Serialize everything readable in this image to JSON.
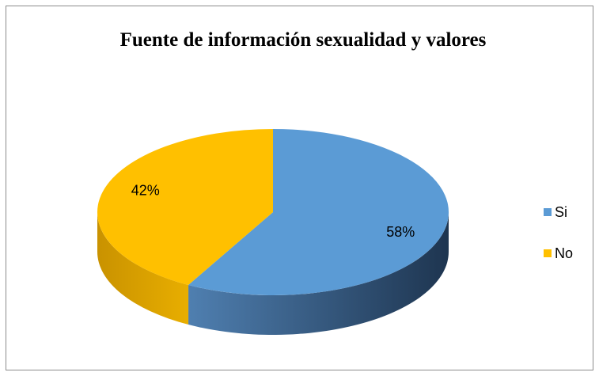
{
  "chart_data": {
    "type": "pie",
    "title": "Fuente de información sexualidad y valores",
    "categories": [
      "Si",
      "No"
    ],
    "values": [
      58,
      42
    ],
    "value_labels": [
      "58%",
      "42%"
    ],
    "colors": [
      "#5b9bd5",
      "#ffc000"
    ],
    "legend": "right"
  }
}
